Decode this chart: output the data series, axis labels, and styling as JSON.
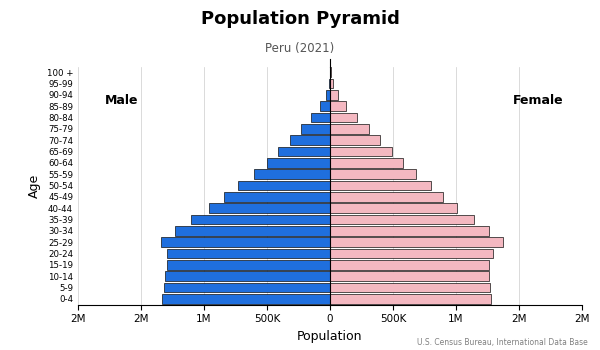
{
  "title": "Population Pyramid",
  "subtitle": "Peru (2021)",
  "source": "U.S. Census Bureau, International Data Base",
  "xlabel": "Population",
  "ylabel": "Age",
  "age_groups": [
    "0-4",
    "5-9",
    "10-14",
    "15-19",
    "20-24",
    "25-29",
    "30-34",
    "35-39",
    "40-44",
    "45-49",
    "50-54",
    "55-59",
    "60-64",
    "65-69",
    "70-74",
    "75-79",
    "80-84",
    "85-89",
    "90-94",
    "95-99",
    "100 +"
  ],
  "male": [
    1330000,
    1320000,
    1310000,
    1290000,
    1290000,
    1340000,
    1230000,
    1100000,
    960000,
    840000,
    730000,
    600000,
    500000,
    410000,
    320000,
    230000,
    150000,
    80000,
    35000,
    10000,
    3000
  ],
  "female": [
    1280000,
    1270000,
    1265000,
    1265000,
    1290000,
    1370000,
    1265000,
    1140000,
    1010000,
    900000,
    800000,
    680000,
    580000,
    490000,
    400000,
    310000,
    215000,
    125000,
    60000,
    20000,
    5000
  ],
  "male_color": "#1f6fde",
  "female_color": "#f4b8c1",
  "bar_edge_color": "#111111",
  "bar_edge_width": 0.5,
  "xlim": 2000000,
  "background_color": "#ffffff",
  "male_label": "Male",
  "female_label": "Female",
  "tick_vals": [
    -2000000,
    -1500000,
    -1000000,
    -500000,
    0,
    500000,
    1000000,
    1500000,
    2000000
  ]
}
